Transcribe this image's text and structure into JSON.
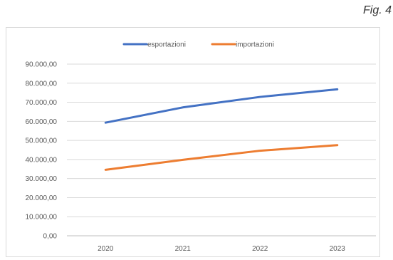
{
  "figure_label": "Fig. 4",
  "chart_data": {
    "type": "line",
    "categories": [
      "2020",
      "2021",
      "2022",
      "2023"
    ],
    "series": [
      {
        "name": "esportazioni",
        "values": [
          59300,
          67300,
          72800,
          76800
        ],
        "color": "#4472c4"
      },
      {
        "name": "importazioni",
        "values": [
          34600,
          39800,
          44600,
          47500
        ],
        "color": "#ed7d31"
      }
    ],
    "ylim": [
      0,
      90000
    ],
    "yticks": [
      "0,00",
      "10.000,00",
      "20.000,00",
      "30.000,00",
      "40.000,00",
      "50.000,00",
      "60.000,00",
      "70.000,00",
      "80.000,00",
      "90.000,00"
    ],
    "grid": true,
    "legend_position": "top"
  }
}
